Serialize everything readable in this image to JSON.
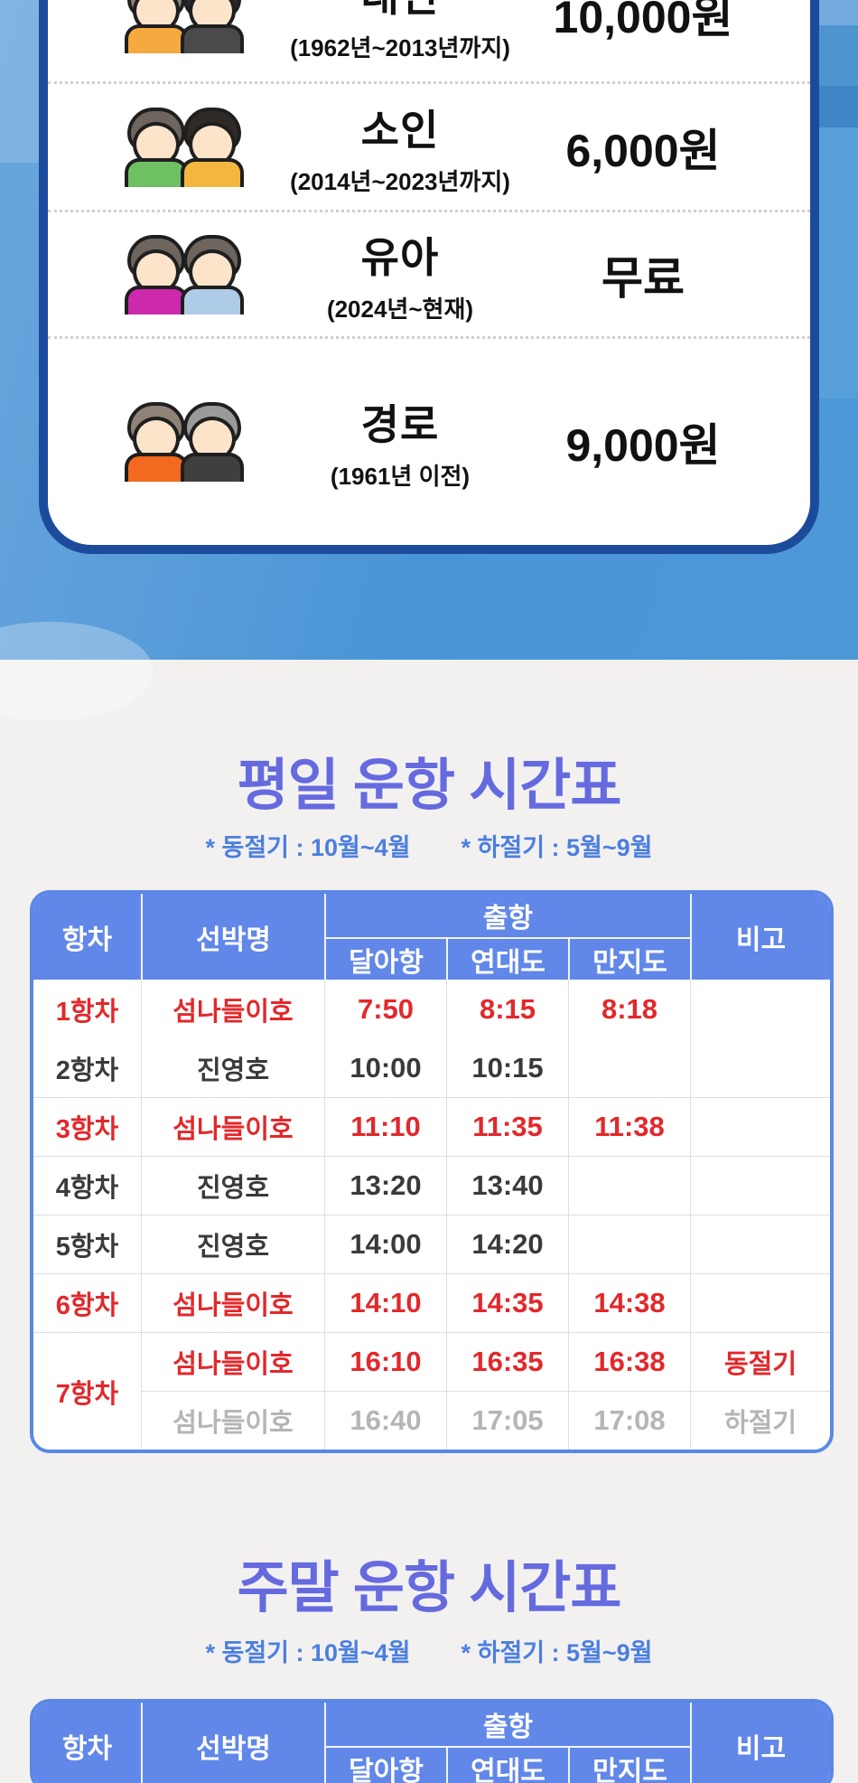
{
  "colors": {
    "card_border_navy": "#1C4B9C",
    "hero_blue": "#4A95D6",
    "title_purple": "#656ADF",
    "note_blue": "#4B7EE0",
    "table_border_blue": "#5988E6",
    "table_header_blue": "#6187E8",
    "accent_red": "#E2282B",
    "muted_gray": "#B5B5B5"
  },
  "fare_card": {
    "rows": [
      {
        "label": "대인",
        "period": "(1962년~2013년까지)",
        "price": "10,000원",
        "icon": {
          "name": "adult-couple-icon",
          "figures": [
            {
              "hair": "#8B8078",
              "outfit": "#F5A93F"
            },
            {
              "hair": "#2A2A2A",
              "outfit": "#4A4A4A"
            }
          ]
        }
      },
      {
        "label": "소인",
        "period": "(2014년~2023년까지)",
        "price": "6,000원",
        "icon": {
          "name": "children-icon",
          "figures": [
            {
              "hair": "#6E655F",
              "outfit": "#6FBF63"
            },
            {
              "hair": "#2E2A28",
              "outfit": "#F5B63F"
            }
          ]
        }
      },
      {
        "label": "유아",
        "period": "(2024년~현재)",
        "price": "무료",
        "icon": {
          "name": "infants-icon",
          "figures": [
            {
              "hair": "#6E655F",
              "outfit": "#CC29AD"
            },
            {
              "hair": "#6E655F",
              "outfit": "#AECBE8"
            }
          ]
        }
      },
      {
        "label": "경로",
        "period": "(1961년 이전)",
        "price": "9,000원",
        "icon": {
          "name": "seniors-icon",
          "figures": [
            {
              "hair": "#8F8377",
              "outfit": "#F2691F"
            },
            {
              "hair": "#9A9A9A",
              "outfit": "#3F3F3F"
            }
          ]
        }
      }
    ]
  },
  "weekday_section": {
    "title": "평일 운항 시간표",
    "notes": [
      "* 동절기 : 10월~4월",
      "* 하절기 : 5월~9월"
    ]
  },
  "weekend_section": {
    "title": "주말 운항 시간표",
    "notes": [
      "* 동절기 : 10월~4월",
      "* 하절기 : 5월~9월"
    ]
  },
  "table": {
    "headers": {
      "voyage": "항차",
      "ship": "선박명",
      "departure": "출항",
      "ports": [
        "달아항",
        "연대도",
        "만지도"
      ],
      "note": "비고"
    },
    "weekday_rows": [
      {
        "voyage": "1항차",
        "voyage_rowspan": 1,
        "ship": "섬나들이호",
        "times": [
          "7:50",
          "8:15",
          "8:18"
        ],
        "note": "",
        "tone": "red",
        "top_line": false
      },
      {
        "voyage": "2항차",
        "voyage_rowspan": 1,
        "ship": "진영호",
        "times": [
          "10:00",
          "10:15",
          ""
        ],
        "note": "",
        "tone": "dark",
        "top_line": false
      },
      {
        "voyage": "3항차",
        "voyage_rowspan": 1,
        "ship": "섬나들이호",
        "times": [
          "11:10",
          "11:35",
          "11:38"
        ],
        "note": "",
        "tone": "red",
        "top_line": true
      },
      {
        "voyage": "4항차",
        "voyage_rowspan": 1,
        "ship": "진영호",
        "times": [
          "13:20",
          "13:40",
          ""
        ],
        "note": "",
        "tone": "dark",
        "top_line": true
      },
      {
        "voyage": "5항차",
        "voyage_rowspan": 1,
        "ship": "진영호",
        "times": [
          "14:00",
          "14:20",
          ""
        ],
        "note": "",
        "tone": "dark",
        "top_line": true
      },
      {
        "voyage": "6항차",
        "voyage_rowspan": 1,
        "ship": "섬나들이호",
        "times": [
          "14:10",
          "14:35",
          "14:38"
        ],
        "note": "",
        "tone": "red",
        "top_line": true
      },
      {
        "voyage": "7항차",
        "voyage_rowspan": 2,
        "ship": "섬나들이호",
        "times": [
          "16:10",
          "16:35",
          "16:38"
        ],
        "note": "동절기",
        "tone": "red",
        "top_line": true
      },
      {
        "voyage": null,
        "voyage_rowspan": 1,
        "ship": "섬나들이호",
        "times": [
          "16:40",
          "17:05",
          "17:08"
        ],
        "note": "하절기",
        "tone": "muted",
        "top_line": true
      }
    ],
    "weekend_rows": []
  }
}
